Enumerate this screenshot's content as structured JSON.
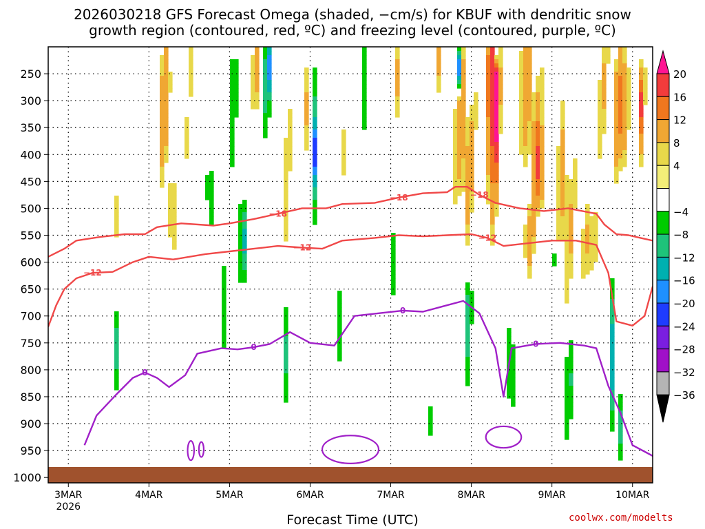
{
  "chart_data": {
    "type": "heatmap",
    "title_line1": "2026030218 GFS Forecast Omega (shaded, −cm/s) for KBUF with dendritic snow",
    "title_line2": "growth region (contoured, red, ºC) and freezing level (contoured, purple, ºC)",
    "xlabel": "Forecast Time (UTC)",
    "credit": "coolwx.com/modelts",
    "x_ticks": [
      {
        "label": "3MAR",
        "day": 3
      },
      {
        "label": "4MAR",
        "day": 4
      },
      {
        "label": "5MAR",
        "day": 5
      },
      {
        "label": "6MAR",
        "day": 6
      },
      {
        "label": "7MAR",
        "day": 7
      },
      {
        "label": "8MAR",
        "day": 8
      },
      {
        "label": "9MAR",
        "day": 9
      },
      {
        "label": "10MAR",
        "day": 10
      }
    ],
    "x_year_label": "2026",
    "x_range": [
      2.75,
      10.25
    ],
    "y_ticks": [
      "250",
      "300",
      "350",
      "400",
      "450",
      "500",
      "550",
      "600",
      "650",
      "700",
      "750",
      "800",
      "850",
      "900",
      "950",
      "1000"
    ],
    "y_range": [
      200,
      1010
    ],
    "colorbar": {
      "labels": [
        "20",
        "16",
        "12",
        "8",
        "4",
        "−4",
        "−8",
        "−12",
        "−16",
        "−20",
        "−24",
        "−28",
        "−32",
        "−36"
      ],
      "colors": [
        "#ff1493",
        "#f23c3c",
        "#f0771e",
        "#f0a733",
        "#e8d84a",
        "#f3ee78",
        "#ffffff",
        "#00cc00",
        "#1ec37a",
        "#00b0b0",
        "#1e90ff",
        "#1e3cff",
        "#7a1ee0",
        "#a010c8",
        "#b4b4b4",
        "#000000"
      ]
    },
    "contours": {
      "minus18": {
        "label": "−18",
        "color": "#f04848",
        "points": [
          [
            2.75,
            590
          ],
          [
            2.95,
            575
          ],
          [
            3.1,
            560
          ],
          [
            3.4,
            553
          ],
          [
            3.7,
            548
          ],
          [
            3.95,
            548
          ],
          [
            4.1,
            535
          ],
          [
            4.4,
            528
          ],
          [
            4.8,
            532
          ],
          [
            5.0,
            528
          ],
          [
            5.3,
            520
          ],
          [
            5.6,
            510
          ],
          [
            5.9,
            500
          ],
          [
            6.2,
            500
          ],
          [
            6.4,
            492
          ],
          [
            6.8,
            490
          ],
          [
            7.1,
            480
          ],
          [
            7.4,
            472
          ],
          [
            7.7,
            470
          ],
          [
            7.8,
            460
          ],
          [
            7.95,
            460
          ],
          [
            8.1,
            475
          ],
          [
            8.3,
            490
          ],
          [
            8.6,
            500
          ],
          [
            8.9,
            505
          ],
          [
            9.2,
            500
          ],
          [
            9.55,
            510
          ],
          [
            9.65,
            530
          ],
          [
            9.8,
            548
          ],
          [
            9.95,
            550
          ],
          [
            10.1,
            555
          ],
          [
            10.25,
            560
          ]
        ]
      },
      "minus12": {
        "label": "−12",
        "color": "#f04848",
        "points": [
          [
            2.75,
            720
          ],
          [
            2.85,
            680
          ],
          [
            2.95,
            650
          ],
          [
            3.1,
            630
          ],
          [
            3.3,
            620
          ],
          [
            3.55,
            618
          ],
          [
            3.8,
            600
          ],
          [
            4.0,
            590
          ],
          [
            4.3,
            595
          ],
          [
            4.7,
            585
          ],
          [
            5.0,
            580
          ],
          [
            5.3,
            575
          ],
          [
            5.6,
            570
          ],
          [
            5.9,
            573
          ],
          [
            6.15,
            575
          ],
          [
            6.4,
            560
          ],
          [
            6.8,
            555
          ],
          [
            7.1,
            550
          ],
          [
            7.4,
            552
          ],
          [
            7.7,
            550
          ],
          [
            8.0,
            548
          ],
          [
            8.2,
            555
          ],
          [
            8.4,
            570
          ],
          [
            8.7,
            565
          ],
          [
            9.0,
            560
          ],
          [
            9.3,
            560
          ],
          [
            9.55,
            568
          ],
          [
            9.7,
            620
          ],
          [
            9.8,
            710
          ],
          [
            10.0,
            718
          ],
          [
            10.15,
            700
          ],
          [
            10.25,
            645
          ]
        ]
      }
    },
    "freezing_level": {
      "label": "0",
      "color": "#a020c8",
      "points": [
        [
          3.2,
          940
        ],
        [
          3.35,
          885
        ],
        [
          3.6,
          845
        ],
        [
          3.8,
          815
        ],
        [
          3.95,
          805
        ],
        [
          4.1,
          815
        ],
        [
          4.25,
          832
        ],
        [
          4.45,
          810
        ],
        [
          4.6,
          770
        ],
        [
          4.9,
          760
        ],
        [
          5.1,
          762
        ],
        [
          5.3,
          758
        ],
        [
          5.5,
          752
        ],
        [
          5.75,
          730
        ],
        [
          6.0,
          750
        ],
        [
          6.3,
          755
        ],
        [
          6.55,
          700
        ],
        [
          6.85,
          695
        ],
        [
          7.15,
          690
        ],
        [
          7.4,
          692
        ],
        [
          7.65,
          682
        ],
        [
          7.9,
          672
        ],
        [
          8.1,
          695
        ],
        [
          8.3,
          760
        ],
        [
          8.4,
          850
        ],
        [
          8.5,
          760
        ],
        [
          8.8,
          752
        ],
        [
          9.1,
          750
        ],
        [
          9.4,
          755
        ],
        [
          9.55,
          760
        ],
        [
          9.7,
          830
        ],
        [
          9.85,
          880
        ],
        [
          10.0,
          940
        ],
        [
          10.25,
          960
        ]
      ]
    },
    "shading_note": "shaded omega values"
  }
}
